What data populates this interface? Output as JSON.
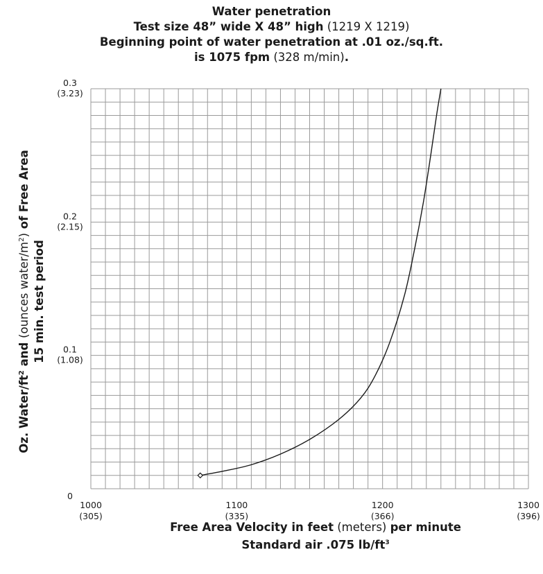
{
  "chart_data": {
    "type": "line",
    "title": {
      "line1": "Water penetration",
      "line2_bold": "Test size 48” wide X 48” high",
      "line2_normal": "(1219 X 1219)",
      "line3": "Beginning point of water penetration at .01 oz./sq.ft.",
      "line4_bold": "is 1075 fpm",
      "line4_normal": "(328 m/min)",
      "line4_end": "."
    },
    "xlabel": {
      "line1_bold_a": "Free Area Velocity in feet",
      "line1_normal": "(meters)",
      "line1_bold_b": "per minute",
      "line2": "Standard air .075 lb/ft",
      "line2_sup": "3"
    },
    "ylabel": {
      "line1_bold_a": "Oz. Water/ft",
      "line1_sup": "2",
      "line1_bold_b": " and ",
      "line1_normal": "(ounces water/m",
      "line1_normal_sup": "2",
      "line1_normal_end": ")",
      "line1_bold_c": " of Free Area",
      "line2": "15 min. test period"
    },
    "xlim": [
      1000,
      1300
    ],
    "ylim": [
      0,
      0.3
    ],
    "x_ticks": [
      {
        "value": 1000,
        "label": "1000",
        "label2": "(305)"
      },
      {
        "value": 1100,
        "label": "1100",
        "label2": "(335)"
      },
      {
        "value": 1200,
        "label": "1200",
        "label2": "(366)"
      },
      {
        "value": 1300,
        "label": "1300",
        "label2": "(396)"
      }
    ],
    "y_ticks": [
      {
        "value": 0,
        "label": "0",
        "label2": ""
      },
      {
        "value": 0.1,
        "label": "0.1",
        "label2": "(1.08)"
      },
      {
        "value": 0.2,
        "label": "0.2",
        "label2": "(2.15)"
      },
      {
        "value": 0.3,
        "label": "0.3",
        "label2": "(3.23)"
      }
    ],
    "grid": true,
    "grid_x_step": 10,
    "grid_y_step": 0.01,
    "series": [
      {
        "x": [
          1075,
          1090,
          1110,
          1130,
          1150,
          1170,
          1185,
          1195,
          1205,
          1215,
          1222,
          1228,
          1233,
          1237,
          1240
        ],
        "y": [
          0.01,
          0.013,
          0.018,
          0.026,
          0.037,
          0.052,
          0.068,
          0.085,
          0.11,
          0.145,
          0.18,
          0.215,
          0.25,
          0.28,
          0.3
        ],
        "color": "#1a1a1a"
      }
    ],
    "start_marker": {
      "x": 1075,
      "y": 0.01,
      "shape": "diamond"
    }
  }
}
